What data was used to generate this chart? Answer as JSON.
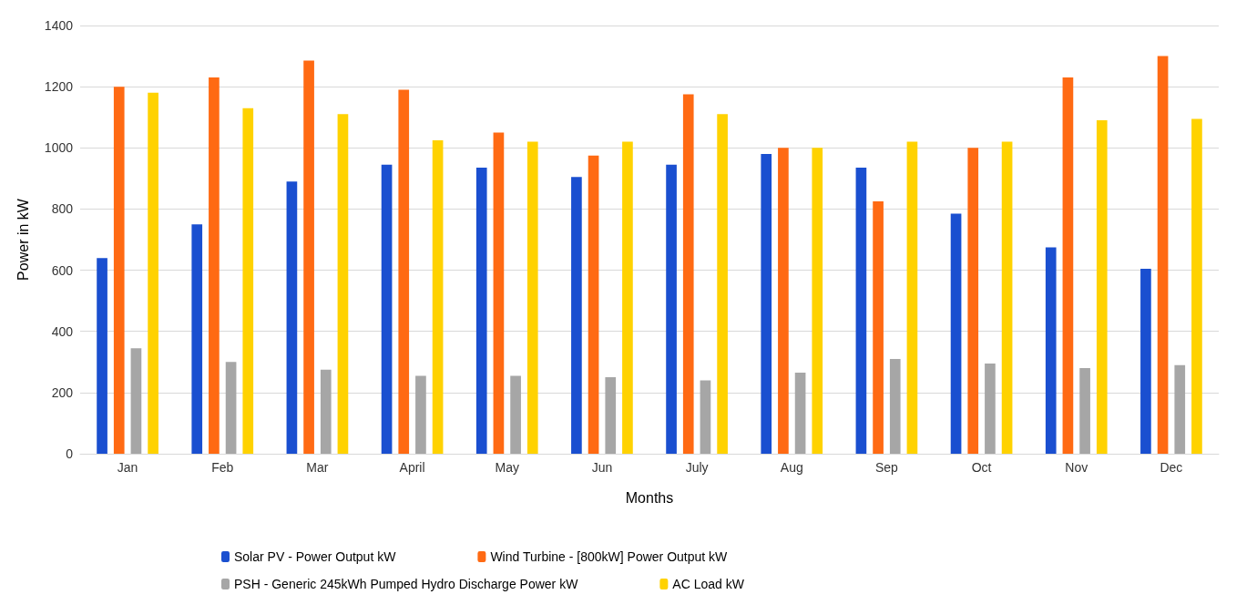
{
  "chart_data": {
    "type": "bar",
    "xlabel": "Months",
    "ylabel": "Power in kW",
    "categories": [
      "Jan",
      "Feb",
      "Mar",
      "April",
      "May",
      "Jun",
      "July",
      "Aug",
      "Sep",
      "Oct",
      "Nov",
      "Dec"
    ],
    "series": [
      {
        "name": "Solar PV - Power Output kW",
        "color": "#1a4fd0",
        "values": [
          640,
          750,
          890,
          945,
          935,
          905,
          945,
          980,
          935,
          785,
          675,
          605
        ]
      },
      {
        "name": "Wind Turbine - [800kW] Power Output kW",
        "color": "#ff6a13",
        "values": [
          1200,
          1230,
          1285,
          1190,
          1050,
          975,
          1175,
          1000,
          825,
          1000,
          1230,
          1300
        ]
      },
      {
        "name": "PSH - Generic 245kWh Pumped Hydro Discharge Power kW",
        "color": "#a6a6a6",
        "values": [
          345,
          300,
          275,
          255,
          255,
          250,
          240,
          265,
          310,
          295,
          280,
          290
        ]
      },
      {
        "name": "AC Load kW",
        "color": "#ffd200",
        "values": [
          1180,
          1130,
          1110,
          1025,
          1020,
          1020,
          1110,
          1000,
          1020,
          1020,
          1090,
          1095
        ]
      }
    ],
    "ylim": [
      0,
      1400
    ],
    "yticks": [
      0,
      200,
      400,
      600,
      800,
      1000,
      1200,
      1400
    ],
    "grid": "y",
    "legend": "bottom"
  }
}
